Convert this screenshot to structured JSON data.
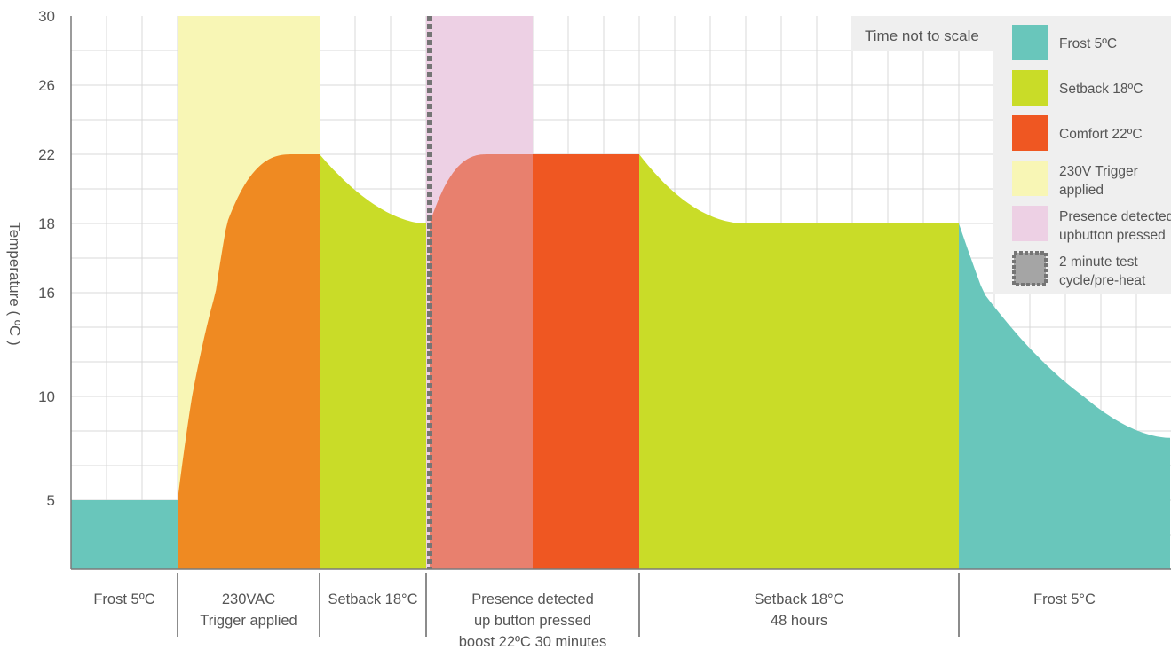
{
  "chart_data": {
    "type": "area",
    "title": "",
    "ylabel": "Temperature ( ºC )",
    "xlabel": "",
    "note": "Time not to scale",
    "x_range": [
      0,
      1238
    ],
    "y_ticks": [
      {
        "label": "30",
        "value": 30
      },
      {
        "label": "26",
        "value": 26
      },
      {
        "label": "22",
        "value": 22
      },
      {
        "label": "18",
        "value": 18
      },
      {
        "label": "16",
        "value": 16
      },
      {
        "label": "10",
        "value": 10
      },
      {
        "label": "5",
        "value": 5
      }
    ],
    "grid": true,
    "legend_position": "top-right",
    "legend": [
      {
        "key": "frost",
        "lines": [
          "Frost 5ºC"
        ]
      },
      {
        "key": "setback",
        "lines": [
          "Setback 18ºC"
        ]
      },
      {
        "key": "comfort",
        "lines": [
          "Comfort 22ºC"
        ]
      },
      {
        "key": "trigger",
        "lines": [
          "230V Trigger",
          "applied"
        ]
      },
      {
        "key": "presence",
        "lines": [
          "Presence detected",
          "upbutton pressed"
        ]
      },
      {
        "key": "test",
        "lines": [
          "2 minute test",
          "cycle/pre-heat"
        ]
      }
    ],
    "colors": {
      "frost": "#69c6bb",
      "setback": "#c9dc28",
      "comfort": "#ef5722",
      "warmup": "#ef8a22",
      "trigger": "#f8f6b5",
      "presence": "#edd0e4",
      "presence_heat": "#e8806e",
      "test": "#757575"
    },
    "phases": [
      {
        "lines": [
          "Frost 5ºC"
        ],
        "start": 0,
        "end": 120
      },
      {
        "lines": [
          "230VAC",
          "Trigger applied"
        ],
        "start": 120,
        "end": 280
      },
      {
        "lines": [
          "Setback 18°C"
        ],
        "start": 280,
        "end": 400
      },
      {
        "lines": [
          "Presence detected",
          "up button pressed",
          "boost 22ºC 30 minutes"
        ],
        "start": 400,
        "end": 640
      },
      {
        "lines": [
          "Setback 18°C",
          "48 hours"
        ],
        "start": 640,
        "end": 1000
      },
      {
        "lines": [
          "Frost 5°C"
        ],
        "start": 1000,
        "end": 1238
      }
    ],
    "highlights": [
      {
        "key": "trigger",
        "start": 120,
        "end": 280
      },
      {
        "key": "presence",
        "start": 400,
        "end": 520
      }
    ],
    "test_marker": {
      "x": 404
    },
    "series": [
      {
        "key": "frost",
        "points": [
          [
            0,
            5
          ],
          [
            120,
            5
          ]
        ]
      },
      {
        "key": "warmup",
        "curve": "rise",
        "from": [
          120,
          5
        ],
        "to": [
          280,
          22
        ],
        "hold_from": 250
      },
      {
        "key": "setback",
        "curve": "decay",
        "from": [
          280,
          22
        ],
        "to": [
          400,
          18
        ]
      },
      {
        "key": "presence_heat",
        "curve": "rise",
        "from": [
          404,
          18
        ],
        "to": [
          520,
          22
        ],
        "hold_from": 470
      },
      {
        "key": "comfort",
        "points": [
          [
            520,
            22
          ],
          [
            640,
            22
          ]
        ]
      },
      {
        "key": "setback",
        "curve": "decay_hold",
        "from": [
          640,
          22
        ],
        "to": [
          1000,
          18
        ],
        "settle_at": 760
      },
      {
        "key": "frost",
        "curve": "decay",
        "from": [
          1000,
          18
        ],
        "to": [
          1238,
          8
        ]
      }
    ]
  }
}
